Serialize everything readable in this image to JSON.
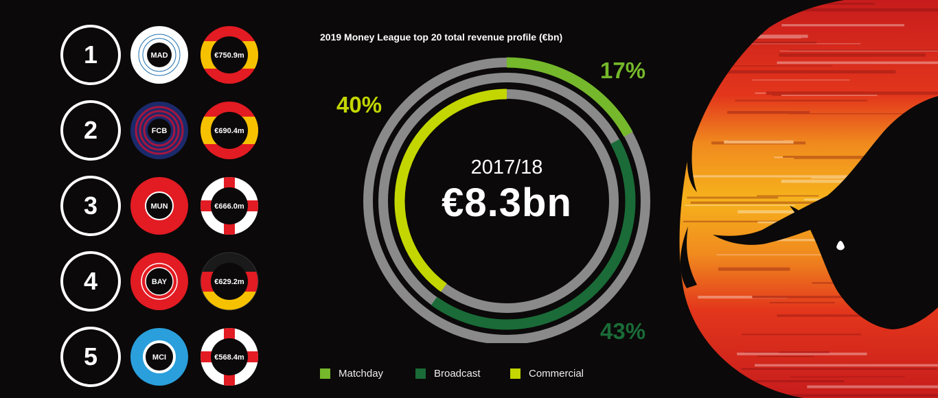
{
  "chart_title": "2019 Money League top 20 total revenue profile (€bn)",
  "center": {
    "season": "2017/18",
    "total": "€8.3bn"
  },
  "rankings": [
    {
      "rank": "1",
      "club": "MAD",
      "revenue": "€750.9m",
      "flag": "spain",
      "club_style": "mad"
    },
    {
      "rank": "2",
      "club": "FCB",
      "revenue": "€690.4m",
      "flag": "spain",
      "club_style": "fcb"
    },
    {
      "rank": "3",
      "club": "MUN",
      "revenue": "€666.0m",
      "flag": "england",
      "club_style": "mun"
    },
    {
      "rank": "4",
      "club": "BAY",
      "revenue": "€629.2m",
      "flag": "germany",
      "club_style": "bay"
    },
    {
      "rank": "5",
      "club": "MCI",
      "revenue": "€568.4m",
      "flag": "england",
      "club_style": "mci"
    }
  ],
  "chart_data": {
    "type": "pie",
    "title": "2019 Money League top 20 total revenue profile (€bn)",
    "subtitle": "2017/18",
    "total": "€8.3bn",
    "categories": [
      "Matchday",
      "Broadcast",
      "Commercial"
    ],
    "values": [
      17,
      43,
      40
    ],
    "value_labels": [
      "17%",
      "43%",
      "40%"
    ],
    "colors": [
      "#75b82b",
      "#1a6b37",
      "#c3d600"
    ],
    "legend_position": "bottom"
  },
  "colors": {
    "background": "#0b0909",
    "track": "#8a8a8a",
    "spain_red": "#e31b23",
    "spain_yellow": "#f6c200"
  },
  "icons": {
    "artwork": "spanish-flag-bull-icon"
  }
}
